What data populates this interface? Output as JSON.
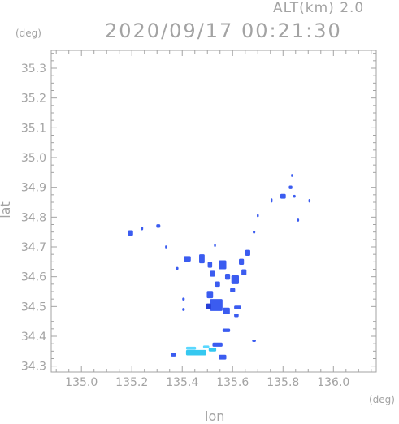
{
  "header": {
    "altitude_label": "ALT(km)  2.0",
    "timestamp": "2020/09/17 00:21:30"
  },
  "axes": {
    "x_title": "lon",
    "y_title": "lat",
    "x_unit": "(deg)",
    "y_unit": "(deg)"
  },
  "map_data": {
    "type": "scatter",
    "xlim": [
      134.88,
      136.17
    ],
    "ylim": [
      34.28,
      35.36
    ],
    "x_ticks": [
      135.0,
      135.2,
      135.4,
      135.6,
      135.8,
      136.0
    ],
    "x_tick_labels": [
      "135.0",
      "135.2",
      "135.4",
      "135.6",
      "135.8",
      "136.0"
    ],
    "y_ticks": [
      34.3,
      34.4,
      34.5,
      34.6,
      34.7,
      34.8,
      34.9,
      35.0,
      35.1,
      35.2,
      35.3
    ],
    "y_tick_labels": [
      "34.3",
      "34.4",
      "34.5",
      "34.6",
      "34.7",
      "34.8",
      "34.9",
      "35.0",
      "35.1",
      "35.2",
      "35.3"
    ],
    "colors": {
      "axis": "#a3a3a3",
      "echo_main": "#3b5cf0",
      "echo_dark": "#2740d8",
      "echo_light": "#35c8f0",
      "echo_cyan": "#5ad8ff"
    },
    "echo_cells": [
      {
        "lon": 135.195,
        "lat": 34.747,
        "w": 0.02,
        "h": 0.018,
        "level": "main"
      },
      {
        "lon": 135.24,
        "lat": 34.762,
        "w": 0.01,
        "h": 0.012,
        "level": "main"
      },
      {
        "lon": 135.305,
        "lat": 34.77,
        "w": 0.016,
        "h": 0.012,
        "level": "main"
      },
      {
        "lon": 135.335,
        "lat": 34.7,
        "w": 0.006,
        "h": 0.01,
        "level": "main"
      },
      {
        "lon": 135.42,
        "lat": 34.66,
        "w": 0.028,
        "h": 0.018,
        "level": "main"
      },
      {
        "lon": 135.38,
        "lat": 34.628,
        "w": 0.01,
        "h": 0.01,
        "level": "main"
      },
      {
        "lon": 135.478,
        "lat": 34.66,
        "w": 0.022,
        "h": 0.03,
        "level": "main"
      },
      {
        "lon": 135.51,
        "lat": 34.64,
        "w": 0.018,
        "h": 0.02,
        "level": "main"
      },
      {
        "lon": 135.52,
        "lat": 34.61,
        "w": 0.02,
        "h": 0.02,
        "level": "main"
      },
      {
        "lon": 135.54,
        "lat": 34.575,
        "w": 0.02,
        "h": 0.018,
        "level": "main"
      },
      {
        "lon": 135.51,
        "lat": 34.54,
        "w": 0.025,
        "h": 0.024,
        "level": "main"
      },
      {
        "lon": 135.535,
        "lat": 34.505,
        "w": 0.05,
        "h": 0.04,
        "level": "main"
      },
      {
        "lon": 135.505,
        "lat": 34.5,
        "w": 0.02,
        "h": 0.02,
        "level": "dark"
      },
      {
        "lon": 135.575,
        "lat": 34.485,
        "w": 0.028,
        "h": 0.022,
        "level": "main"
      },
      {
        "lon": 135.62,
        "lat": 34.497,
        "w": 0.028,
        "h": 0.012,
        "level": "main"
      },
      {
        "lon": 135.615,
        "lat": 34.47,
        "w": 0.018,
        "h": 0.012,
        "level": "main"
      },
      {
        "lon": 135.56,
        "lat": 34.64,
        "w": 0.03,
        "h": 0.03,
        "level": "main"
      },
      {
        "lon": 135.58,
        "lat": 34.6,
        "w": 0.02,
        "h": 0.02,
        "level": "main"
      },
      {
        "lon": 135.61,
        "lat": 34.59,
        "w": 0.03,
        "h": 0.03,
        "level": "main"
      },
      {
        "lon": 135.635,
        "lat": 34.65,
        "w": 0.02,
        "h": 0.02,
        "level": "main"
      },
      {
        "lon": 135.66,
        "lat": 34.68,
        "w": 0.02,
        "h": 0.02,
        "level": "main"
      },
      {
        "lon": 135.645,
        "lat": 34.615,
        "w": 0.02,
        "h": 0.02,
        "level": "main"
      },
      {
        "lon": 135.6,
        "lat": 34.555,
        "w": 0.02,
        "h": 0.014,
        "level": "main"
      },
      {
        "lon": 135.53,
        "lat": 34.705,
        "w": 0.008,
        "h": 0.01,
        "level": "main"
      },
      {
        "lon": 135.405,
        "lat": 34.525,
        "w": 0.01,
        "h": 0.01,
        "level": "main"
      },
      {
        "lon": 135.405,
        "lat": 34.49,
        "w": 0.01,
        "h": 0.01,
        "level": "main"
      },
      {
        "lon": 135.575,
        "lat": 34.42,
        "w": 0.03,
        "h": 0.012,
        "level": "main"
      },
      {
        "lon": 135.54,
        "lat": 34.372,
        "w": 0.04,
        "h": 0.014,
        "level": "main"
      },
      {
        "lon": 135.56,
        "lat": 34.33,
        "w": 0.03,
        "h": 0.016,
        "level": "main"
      },
      {
        "lon": 135.455,
        "lat": 34.345,
        "w": 0.08,
        "h": 0.018,
        "level": "light"
      },
      {
        "lon": 135.365,
        "lat": 34.338,
        "w": 0.02,
        "h": 0.012,
        "level": "main"
      },
      {
        "lon": 135.52,
        "lat": 34.355,
        "w": 0.03,
        "h": 0.012,
        "level": "light"
      },
      {
        "lon": 135.435,
        "lat": 34.36,
        "w": 0.04,
        "h": 0.01,
        "level": "cyan"
      },
      {
        "lon": 135.495,
        "lat": 34.365,
        "w": 0.025,
        "h": 0.008,
        "level": "cyan"
      },
      {
        "lon": 135.685,
        "lat": 34.385,
        "w": 0.015,
        "h": 0.008,
        "level": "main"
      },
      {
        "lon": 135.755,
        "lat": 34.856,
        "w": 0.006,
        "h": 0.014,
        "level": "main"
      },
      {
        "lon": 135.8,
        "lat": 34.87,
        "w": 0.022,
        "h": 0.016,
        "level": "main"
      },
      {
        "lon": 135.83,
        "lat": 34.9,
        "w": 0.014,
        "h": 0.012,
        "level": "main"
      },
      {
        "lon": 135.845,
        "lat": 34.87,
        "w": 0.01,
        "h": 0.01,
        "level": "main"
      },
      {
        "lon": 135.835,
        "lat": 34.94,
        "w": 0.006,
        "h": 0.01,
        "level": "main"
      },
      {
        "lon": 135.905,
        "lat": 34.855,
        "w": 0.008,
        "h": 0.012,
        "level": "main"
      },
      {
        "lon": 135.86,
        "lat": 34.79,
        "w": 0.008,
        "h": 0.01,
        "level": "main"
      },
      {
        "lon": 135.7,
        "lat": 34.805,
        "w": 0.008,
        "h": 0.01,
        "level": "main"
      },
      {
        "lon": 135.685,
        "lat": 34.75,
        "w": 0.01,
        "h": 0.01,
        "level": "main"
      }
    ]
  }
}
